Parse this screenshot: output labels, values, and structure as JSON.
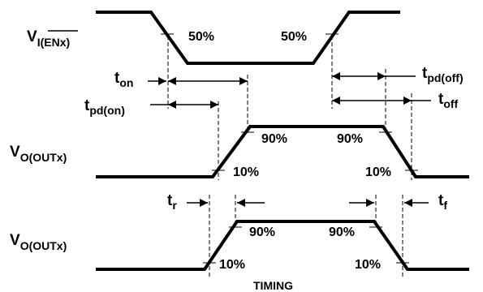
{
  "signals": {
    "en": {
      "main": "V",
      "sub": "I(ENx)",
      "overbar_text": "ENx"
    },
    "out1": {
      "main": "V",
      "sub": "O(OUTx)"
    },
    "out2": {
      "main": "V",
      "sub": "O(OUTx)"
    }
  },
  "levels": {
    "p50": "50%",
    "p90": "90%",
    "p10": "10%"
  },
  "times": {
    "t_on": {
      "main": "t",
      "sub": "on"
    },
    "t_pd_on": {
      "main": "t",
      "sub": "pd(on)"
    },
    "t_pd_off": {
      "main": "t",
      "sub": "pd(off)"
    },
    "t_off": {
      "main": "t",
      "sub": "off"
    },
    "t_r": {
      "main": "t",
      "sub": "r"
    },
    "t_f": {
      "main": "t",
      "sub": "f"
    }
  },
  "caption": "TIMING"
}
